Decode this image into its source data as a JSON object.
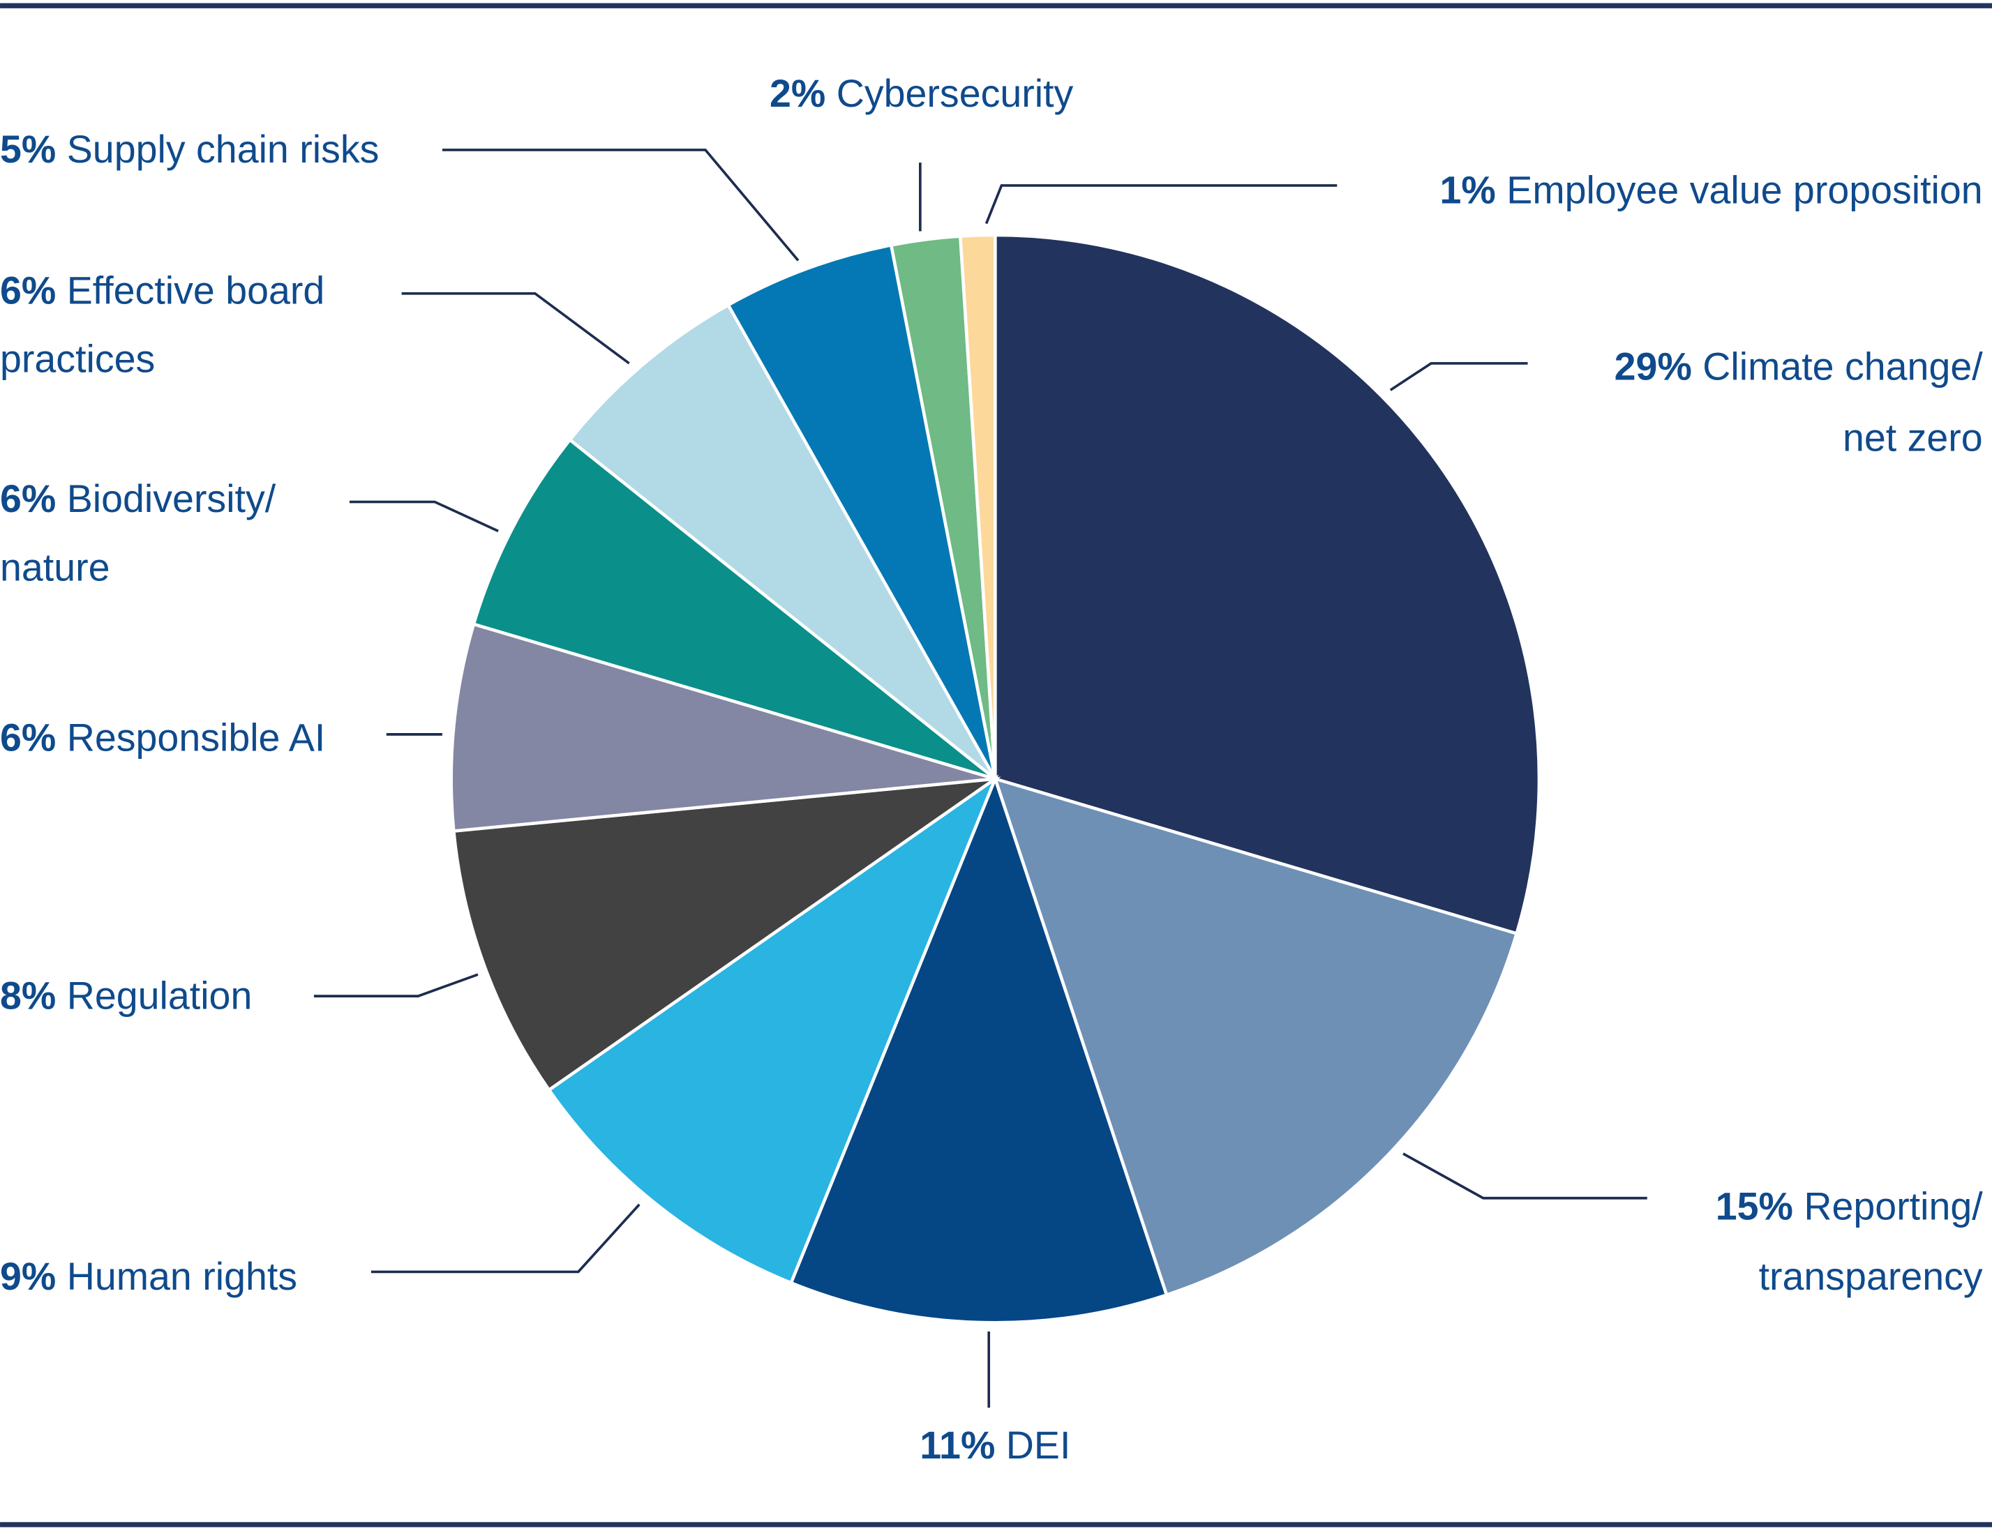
{
  "chart_data": {
    "type": "pie",
    "start": "12 o'clock",
    "direction": "clockwise",
    "slices": [
      {
        "value": 29,
        "pct_label": "29%",
        "label_lines": [
          "Climate change/",
          "net zero"
        ],
        "color": "#22335e"
      },
      {
        "value": 15,
        "pct_label": "15%",
        "label_lines": [
          "Reporting/",
          "transparency"
        ],
        "color": "#6f90b5"
      },
      {
        "value": 11,
        "pct_label": "11%",
        "label_lines": [
          "DEI"
        ],
        "color": "#054685"
      },
      {
        "value": 9,
        "pct_label": "9%",
        "label_lines": [
          "Human rights"
        ],
        "color": "#29b4e2"
      },
      {
        "value": 8,
        "pct_label": "8%",
        "label_lines": [
          "Regulation"
        ],
        "color": "#424242"
      },
      {
        "value": 6,
        "pct_label": "6%",
        "label_lines": [
          "Responsible AI"
        ],
        "color": "#8487a3"
      },
      {
        "value": 6,
        "pct_label": "6%",
        "label_lines": [
          "Biodiversity/",
          "nature"
        ],
        "color": "#0b8f8a"
      },
      {
        "value": 6,
        "pct_label": "6%",
        "label_lines": [
          "Effective board",
          "practices"
        ],
        "color": "#b2d9e6"
      },
      {
        "value": 5,
        "pct_label": "5%",
        "label_lines": [
          "Supply chain risks"
        ],
        "color": "#0478b4"
      },
      {
        "value": 2,
        "pct_label": "2%",
        "label_lines": [
          "Cybersecurity"
        ],
        "color": "#6fba85"
      },
      {
        "value": 1,
        "pct_label": "1%",
        "label_lines": [
          "Employee value proposition"
        ],
        "color": "#fdd89b"
      }
    ],
    "label_color": "#0f4a8c",
    "leader_color": "#1d2c4f",
    "rule_color": "#22335e",
    "legend": "none"
  }
}
